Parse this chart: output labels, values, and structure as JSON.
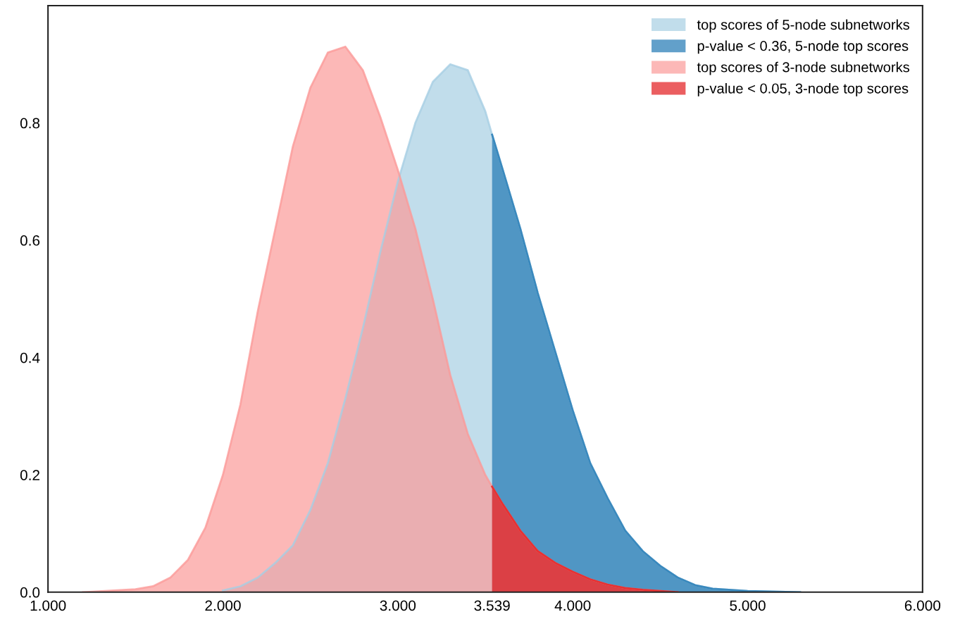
{
  "chart_data": {
    "type": "area",
    "xlim": [
      1.0,
      6.0
    ],
    "ylim": [
      0,
      1.0
    ],
    "xticks": [
      {
        "value": 1.0,
        "label": "1.000"
      },
      {
        "value": 2.0,
        "label": "2.000"
      },
      {
        "value": 3.0,
        "label": "3.000"
      },
      {
        "value": 3.539,
        "label": "3.539"
      },
      {
        "value": 4.0,
        "label": "4.000"
      },
      {
        "value": 5.0,
        "label": "5.000"
      },
      {
        "value": 6.0,
        "label": "6.000"
      }
    ],
    "yticks": [
      {
        "value": 0,
        "label": "0.0"
      },
      0.2,
      0.4,
      0.6,
      0.8
    ],
    "grid": false,
    "legend": "top right",
    "series": [
      {
        "name": "top scores of 5-node subnetworks",
        "color": "#a6cee3",
        "x": [
          2.0,
          2.1,
          2.2,
          2.3,
          2.4,
          2.5,
          2.6,
          2.7,
          2.8,
          2.9,
          3.0,
          3.1,
          3.2,
          3.3,
          3.4,
          3.5,
          3.539,
          3.6,
          3.7,
          3.8,
          3.9,
          4.0,
          4.1,
          4.2,
          4.3,
          4.4,
          4.5,
          4.6,
          4.7,
          4.8,
          5.0,
          5.3
        ],
        "values": [
          0.003,
          0.01,
          0.025,
          0.05,
          0.08,
          0.14,
          0.22,
          0.33,
          0.45,
          0.58,
          0.7,
          0.8,
          0.87,
          0.9,
          0.89,
          0.82,
          0.78,
          0.72,
          0.62,
          0.51,
          0.41,
          0.31,
          0.22,
          0.16,
          0.105,
          0.07,
          0.045,
          0.025,
          0.012,
          0.006,
          0.002,
          0
        ]
      },
      {
        "name": "p-value < 0.36, 5-node top scores",
        "color": "#1f78b4",
        "x": [
          3.539,
          3.6,
          3.7,
          3.8,
          3.9,
          4.0,
          4.1,
          4.2,
          4.3,
          4.4,
          4.5,
          4.6,
          4.7,
          4.8,
          5.0,
          5.3
        ],
        "values": [
          0.78,
          0.72,
          0.62,
          0.51,
          0.41,
          0.31,
          0.22,
          0.16,
          0.105,
          0.07,
          0.045,
          0.025,
          0.012,
          0.006,
          0.002,
          0
        ]
      },
      {
        "name": "top scores of 3-node subnetworks",
        "color": "#fb9a99",
        "x": [
          1.2,
          1.5,
          1.6,
          1.7,
          1.8,
          1.9,
          2.0,
          2.1,
          2.2,
          2.3,
          2.4,
          2.5,
          2.6,
          2.7,
          2.8,
          2.9,
          3.0,
          3.1,
          3.2,
          3.3,
          3.4,
          3.5,
          3.539,
          3.6,
          3.7,
          3.8,
          3.9,
          4.0,
          4.1,
          4.2,
          4.3,
          4.4,
          4.6
        ],
        "values": [
          0,
          0.005,
          0.01,
          0.025,
          0.055,
          0.11,
          0.2,
          0.32,
          0.48,
          0.62,
          0.76,
          0.86,
          0.92,
          0.93,
          0.89,
          0.81,
          0.72,
          0.62,
          0.5,
          0.37,
          0.27,
          0.2,
          0.18,
          0.15,
          0.105,
          0.07,
          0.05,
          0.035,
          0.022,
          0.013,
          0.007,
          0.004,
          0
        ]
      },
      {
        "name": "p-value < 0.05, 3-node top scores",
        "color": "#e31a1c",
        "x": [
          3.539,
          3.6,
          3.7,
          3.8,
          3.9,
          4.0,
          4.1,
          4.2,
          4.3,
          4.4,
          4.6
        ],
        "values": [
          0.18,
          0.15,
          0.105,
          0.07,
          0.05,
          0.035,
          0.022,
          0.013,
          0.007,
          0.004,
          0
        ]
      }
    ]
  }
}
